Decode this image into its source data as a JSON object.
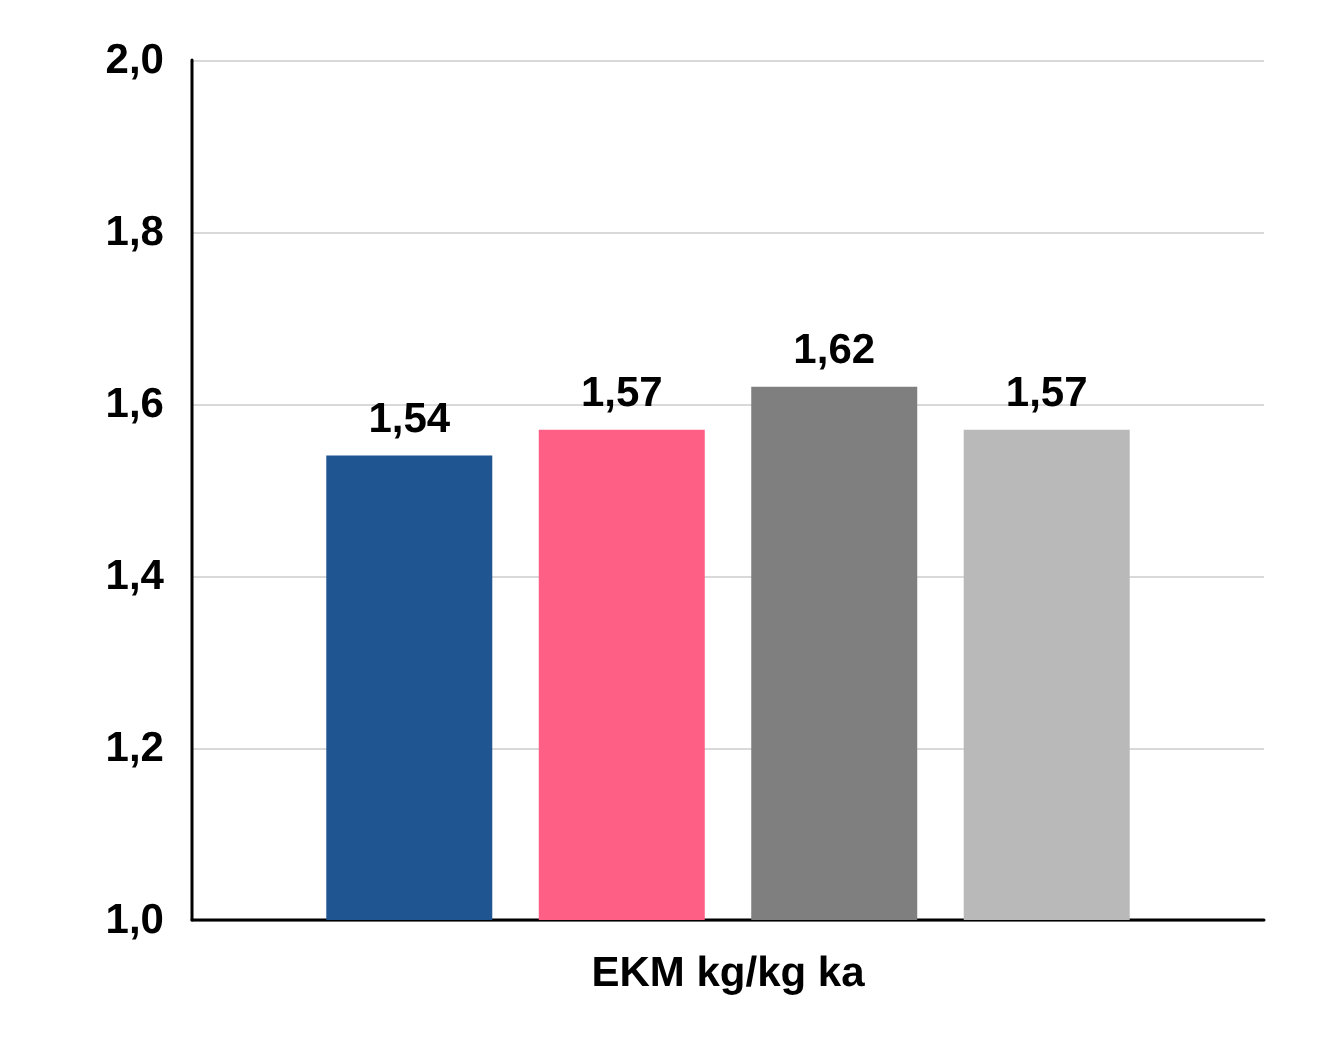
{
  "chart_data": {
    "type": "bar",
    "categories": [
      "EKM kg/kg ka"
    ],
    "series": [
      {
        "color": "#1f5591",
        "values": [
          1.54
        ],
        "value_labels": [
          "1,54"
        ]
      },
      {
        "color": "#fe5f84",
        "values": [
          1.57
        ],
        "value_labels": [
          "1,57"
        ]
      },
      {
        "color": "#7f7f7f",
        "values": [
          1.62
        ],
        "value_labels": [
          "1,62"
        ]
      },
      {
        "color": "#b9b9b9",
        "values": [
          1.57
        ],
        "value_labels": [
          "1,57"
        ]
      }
    ],
    "ylim": [
      1.0,
      2.0
    ],
    "yticks": [
      {
        "value": 1.0,
        "label": "1,0"
      },
      {
        "value": 1.2,
        "label": "1,2"
      },
      {
        "value": 1.4,
        "label": "1,4"
      },
      {
        "value": 1.6,
        "label": "1,6"
      },
      {
        "value": 1.8,
        "label": "1,8"
      },
      {
        "value": 2.0,
        "label": "2,0"
      }
    ],
    "grid": "y"
  }
}
